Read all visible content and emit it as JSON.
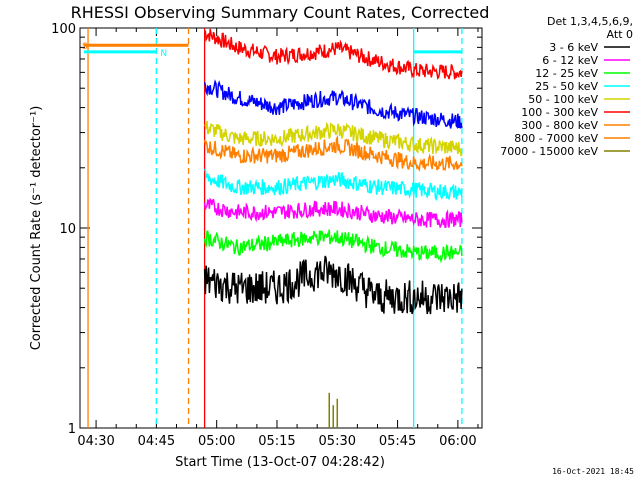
{
  "chart_data": {
    "type": "line",
    "title": "RHESSI Observing Summary Count Rates, Corrected",
    "xlabel": "Start Time (13-Oct-07 04:28:42)",
    "ylabel": "Corrected Count Rate (s⁻¹ detector⁻¹)",
    "y_scale": "log",
    "ylim": [
      1,
      100
    ],
    "xlim": [
      "04:26",
      "06:06"
    ],
    "x_ticks": [
      "04:30",
      "04:45",
      "05:00",
      "05:15",
      "05:30",
      "05:45",
      "06:00"
    ],
    "y_ticks": [
      "1",
      "10",
      "100"
    ],
    "grid": false,
    "legend_position": "top-right",
    "legend_header": [
      "Det 1,3,4,5,6,9,",
      "Att 0"
    ],
    "legend": [
      {
        "label": "3 - 6 keV",
        "color": "#000000"
      },
      {
        "label": "6 - 12 keV",
        "color": "#ff00ff"
      },
      {
        "label": "12 - 25 keV",
        "color": "#00ff00"
      },
      {
        "label": "25 - 50 keV",
        "color": "#00ffff"
      },
      {
        "label": "50 - 100 keV",
        "color": "#d4d400"
      },
      {
        "label": "100 - 300 keV",
        "color": "#ff0000"
      },
      {
        "label": "300 - 800 keV",
        "color": "#ff8000"
      },
      {
        "label": "800 - 7000 keV",
        "color": "#ff8000"
      },
      {
        "label": "7000 - 15000 keV",
        "color": "#808000"
      }
    ],
    "series_curves": [
      {
        "color": "#ff0000",
        "points": [
          [
            "04:57",
            95
          ],
          [
            "05:05",
            80
          ],
          [
            "05:15",
            72
          ],
          [
            "05:25",
            76
          ],
          [
            "05:30",
            79
          ],
          [
            "05:40",
            68
          ],
          [
            "05:50",
            61
          ],
          [
            "06:01",
            60
          ]
        ]
      },
      {
        "color": "#0000ff",
        "points": [
          [
            "04:57",
            52
          ],
          [
            "05:05",
            45
          ],
          [
            "05:15",
            40
          ],
          [
            "05:25",
            44
          ],
          [
            "05:30",
            45
          ],
          [
            "05:40",
            39
          ],
          [
            "05:50",
            36
          ],
          [
            "06:01",
            34
          ]
        ]
      },
      {
        "color": "#d4d400",
        "points": [
          [
            "04:57",
            32
          ],
          [
            "05:05",
            28
          ],
          [
            "05:15",
            28
          ],
          [
            "05:25",
            30
          ],
          [
            "05:30",
            31
          ],
          [
            "05:40",
            28
          ],
          [
            "05:50",
            26
          ],
          [
            "06:01",
            25
          ]
        ]
      },
      {
        "color": "#ff8000",
        "points": [
          [
            "04:57",
            26
          ],
          [
            "05:05",
            23
          ],
          [
            "05:15",
            23
          ],
          [
            "05:25",
            25
          ],
          [
            "05:30",
            26
          ],
          [
            "05:40",
            23
          ],
          [
            "05:50",
            21
          ],
          [
            "06:01",
            21
          ]
        ]
      },
      {
        "color": "#00ffff",
        "points": [
          [
            "04:57",
            18
          ],
          [
            "05:05",
            16
          ],
          [
            "05:15",
            16
          ],
          [
            "05:25",
            17
          ],
          [
            "05:30",
            17.5
          ],
          [
            "05:40",
            16
          ],
          [
            "05:50",
            15.5
          ],
          [
            "06:01",
            15
          ]
        ]
      },
      {
        "color": "#ff00ff",
        "points": [
          [
            "04:57",
            13
          ],
          [
            "05:05",
            12
          ],
          [
            "05:15",
            12
          ],
          [
            "05:25",
            12.5
          ],
          [
            "05:30",
            12.5
          ],
          [
            "05:40",
            11.5
          ],
          [
            "05:50",
            11
          ],
          [
            "06:01",
            11
          ]
        ]
      },
      {
        "color": "#00ff00",
        "points": [
          [
            "04:57",
            9
          ],
          [
            "05:05",
            8
          ],
          [
            "05:15",
            8.5
          ],
          [
            "05:25",
            9
          ],
          [
            "05:30",
            9
          ],
          [
            "05:40",
            8
          ],
          [
            "05:50",
            7.5
          ],
          [
            "06:01",
            7.5
          ]
        ]
      },
      {
        "color": "#000000",
        "points": [
          [
            "04:57",
            5.5
          ],
          [
            "05:05",
            5
          ],
          [
            "05:15",
            5
          ],
          [
            "05:25",
            6
          ],
          [
            "05:30",
            6
          ],
          [
            "05:40",
            4.5
          ],
          [
            "05:50",
            4.5
          ],
          [
            "06:01",
            4.5
          ]
        ]
      }
    ],
    "olive_spikes": [
      [
        "05:28",
        1.5
      ],
      [
        "05:29",
        1.3
      ],
      [
        "05:30",
        1.4
      ]
    ],
    "flag_bars": [
      {
        "label": "S",
        "color": "#ff8000",
        "from": "04:27",
        "to": "04:53",
        "y": 82
      },
      {
        "label": "N",
        "color": "#00ffff",
        "from": "04:27",
        "to": "04:45",
        "y": 76
      },
      {
        "label": "",
        "color": "#00ffff",
        "from": "05:49",
        "to": "06:01",
        "y": 76
      }
    ],
    "vlines": [
      {
        "time": "04:28",
        "color": "#ff8000",
        "style": "solid"
      },
      {
        "time": "04:45",
        "color": "#00ffff",
        "style": "dashed"
      },
      {
        "time": "04:53",
        "color": "#ff8000",
        "style": "dashed"
      },
      {
        "time": "04:57",
        "color": "#ff0000",
        "style": "solid"
      },
      {
        "time": "05:49",
        "color": "#00ffff",
        "style": "solid"
      },
      {
        "time": "06:01",
        "color": "#00ffff",
        "style": "dashed"
      }
    ],
    "footer_date": "16-Oct-2021 18:45"
  }
}
